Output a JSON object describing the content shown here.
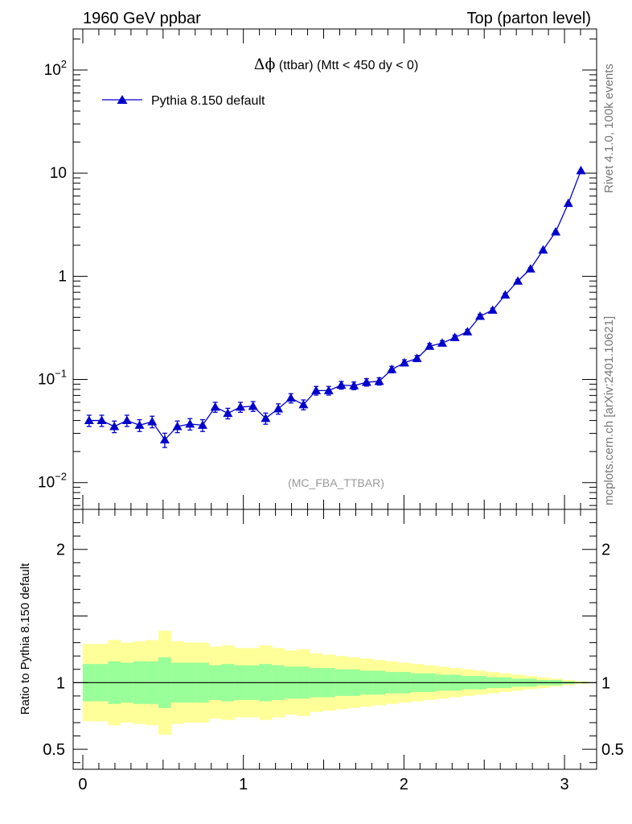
{
  "header": {
    "left": "1960 GeV ppbar",
    "right": "Top (parton level)"
  },
  "side_labels": {
    "rivet": "Rivet 4.1.0,  100k events",
    "mcplots": "mcplots.cern.ch [arXiv:2401.10621]"
  },
  "chart_data": [
    {
      "type": "line",
      "panel": "main",
      "title": "Δϕ (ttbar) (Mtt < 450 dy < 0)",
      "title_symbol": "Δϕ",
      "title_rest": " (ttbar) (Mtt < 450 dy < 0)",
      "xlabel": "",
      "ylabel": "",
      "yscale": "log",
      "xlim": [
        -0.06,
        3.2
      ],
      "ylim": [
        0.0055,
        250
      ],
      "yticks": [
        {
          "value": 0.01,
          "base": "10",
          "exp": "−2"
        },
        {
          "value": 0.1,
          "base": "10",
          "exp": "−1"
        },
        {
          "value": 1,
          "base": "1",
          "exp": ""
        },
        {
          "value": 10,
          "base": "10",
          "exp": ""
        },
        {
          "value": 100,
          "base": "10",
          "exp": "2"
        }
      ],
      "analysis_tag": "(MC_FBA_TTBAR)",
      "legend": "Pythia 8.150 default",
      "legend_position": "top-left",
      "series_color": "#0000cc",
      "series": [
        {
          "name": "Pythia 8.150 default",
          "x": [
            0.0393,
            0.1178,
            0.1963,
            0.2749,
            0.3534,
            0.432,
            0.5105,
            0.589,
            0.6676,
            0.7461,
            0.8247,
            0.9032,
            0.9817,
            1.0603,
            1.1388,
            1.2174,
            1.2959,
            1.3744,
            1.453,
            1.5315,
            1.6101,
            1.6886,
            1.7671,
            1.8457,
            1.9242,
            2.0028,
            2.0813,
            2.1598,
            2.2384,
            2.3169,
            2.3955,
            2.474,
            2.5525,
            2.6311,
            2.7096,
            2.7882,
            2.8667,
            2.9452,
            3.0238,
            3.1023
          ],
          "values": [
            0.04,
            0.04,
            0.035,
            0.04,
            0.036,
            0.039,
            0.026,
            0.035,
            0.037,
            0.036,
            0.054,
            0.047,
            0.054,
            0.055,
            0.042,
            0.052,
            0.066,
            0.057,
            0.078,
            0.078,
            0.088,
            0.087,
            0.094,
            0.096,
            0.125,
            0.145,
            0.16,
            0.21,
            0.225,
            0.255,
            0.29,
            0.41,
            0.47,
            0.66,
            0.9,
            1.18,
            1.8,
            2.7,
            5.1,
            10.6
          ],
          "errors": [
            0.005,
            0.005,
            0.0045,
            0.005,
            0.0047,
            0.005,
            0.0041,
            0.0045,
            0.0047,
            0.0047,
            0.006,
            0.0055,
            0.006,
            0.006,
            0.0052,
            0.006,
            0.0068,
            0.0063,
            0.0075,
            0.0075,
            0.0075,
            0.0074,
            0.0078,
            0.0078,
            0.009,
            0.01,
            0.011,
            0.013,
            0.013,
            0.014,
            0.015,
            0.019,
            0.02,
            0.025,
            0.03,
            0.035,
            0.04,
            0.05,
            0.07,
            0.1
          ]
        }
      ]
    },
    {
      "type": "area",
      "panel": "ratio",
      "ylabel": "Ratio to Pythia 8.150 default",
      "xlim": [
        -0.06,
        3.2
      ],
      "ylim": [
        0.35,
        2.3
      ],
      "xticks": [
        0,
        1,
        2,
        3
      ],
      "yticks": [
        0.5,
        1,
        2
      ],
      "reference_line": 1,
      "colors": {
        "outer": "#ffff99",
        "inner": "#99ff99",
        "line": "#000000"
      },
      "bin_edges": [
        0.0,
        0.0785,
        0.1571,
        0.2356,
        0.3142,
        0.3927,
        0.4712,
        0.5498,
        0.6283,
        0.7069,
        0.7854,
        0.8639,
        0.9425,
        1.021,
        1.0996,
        1.1781,
        1.2566,
        1.3352,
        1.4137,
        1.4923,
        1.5708,
        1.6493,
        1.7279,
        1.8064,
        1.885,
        1.9635,
        2.042,
        2.1206,
        2.1991,
        2.2777,
        2.3562,
        2.4347,
        2.5133,
        2.5918,
        2.6704,
        2.7489,
        2.8274,
        2.906,
        2.9845,
        3.0631,
        3.1416
      ],
      "outer_band": {
        "lower": [
          0.71,
          0.71,
          0.68,
          0.7,
          0.69,
          0.68,
          0.61,
          0.69,
          0.7,
          0.7,
          0.73,
          0.72,
          0.74,
          0.74,
          0.72,
          0.74,
          0.76,
          0.75,
          0.78,
          0.79,
          0.8,
          0.81,
          0.82,
          0.83,
          0.84,
          0.85,
          0.86,
          0.87,
          0.88,
          0.89,
          0.9,
          0.91,
          0.92,
          0.93,
          0.94,
          0.95,
          0.96,
          0.97,
          0.98,
          0.99
        ],
        "upper": [
          1.29,
          1.29,
          1.32,
          1.3,
          1.31,
          1.32,
          1.39,
          1.31,
          1.3,
          1.3,
          1.27,
          1.28,
          1.26,
          1.26,
          1.28,
          1.26,
          1.24,
          1.25,
          1.22,
          1.21,
          1.2,
          1.19,
          1.18,
          1.17,
          1.16,
          1.15,
          1.14,
          1.13,
          1.12,
          1.11,
          1.1,
          1.09,
          1.08,
          1.07,
          1.06,
          1.05,
          1.04,
          1.03,
          1.02,
          1.01
        ]
      },
      "inner_band": {
        "lower": [
          0.86,
          0.86,
          0.84,
          0.85,
          0.84,
          0.84,
          0.81,
          0.85,
          0.85,
          0.85,
          0.87,
          0.86,
          0.87,
          0.87,
          0.86,
          0.87,
          0.88,
          0.88,
          0.89,
          0.89,
          0.9,
          0.9,
          0.91,
          0.91,
          0.92,
          0.92,
          0.93,
          0.93,
          0.94,
          0.94,
          0.95,
          0.95,
          0.96,
          0.96,
          0.97,
          0.97,
          0.98,
          0.98,
          0.99,
          0.995
        ],
        "upper": [
          1.14,
          1.14,
          1.16,
          1.15,
          1.16,
          1.16,
          1.19,
          1.15,
          1.15,
          1.15,
          1.13,
          1.14,
          1.13,
          1.13,
          1.14,
          1.13,
          1.12,
          1.12,
          1.11,
          1.11,
          1.1,
          1.1,
          1.09,
          1.09,
          1.08,
          1.08,
          1.07,
          1.07,
          1.06,
          1.06,
          1.05,
          1.05,
          1.04,
          1.04,
          1.03,
          1.03,
          1.02,
          1.02,
          1.01,
          1.005
        ]
      }
    }
  ]
}
